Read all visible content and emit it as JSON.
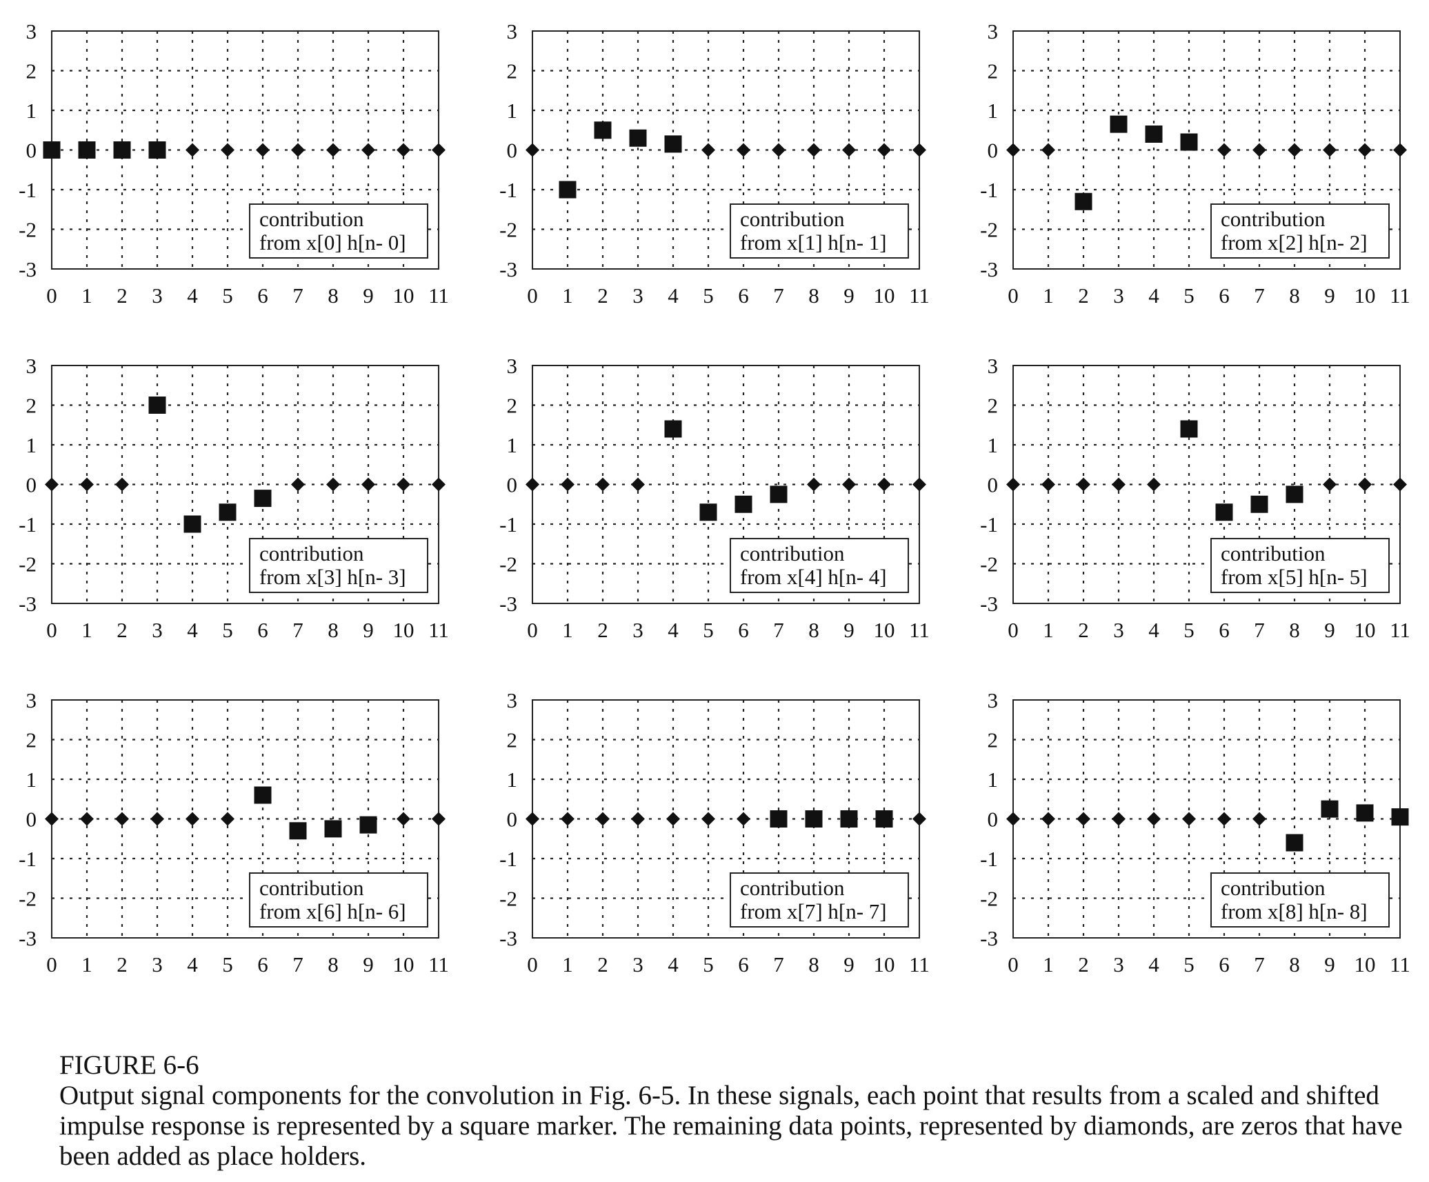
{
  "figure": {
    "label": "FIGURE 6-6",
    "caption": "Output signal components for the convolution in Fig. 6-5.  In these signals, each point that results from a scaled and shifted impulse response is represented by a square marker.  The remaining data points, represented by diamonds, are zeros that have been added as place holders."
  },
  "colors": {
    "marker": "#111111",
    "grid": "#222222",
    "frame": "#222222",
    "background": "#ffffff"
  },
  "chart_data": [
    {
      "type": "scatter",
      "legend": [
        "contribution",
        "from  x[0] h[n- 0]"
      ],
      "x": [
        0,
        1,
        2,
        3,
        4,
        5,
        6,
        7,
        8,
        9,
        10,
        11
      ],
      "values": [
        0,
        0,
        0,
        0,
        0,
        0,
        0,
        0,
        0,
        0,
        0,
        0
      ],
      "square_indices": [
        0,
        1,
        2,
        3
      ],
      "xlim": [
        0,
        11
      ],
      "ylim": [
        -3,
        3
      ],
      "xticks": [
        "0",
        "1",
        "2",
        "3",
        "4",
        "5",
        "6",
        "7",
        "8",
        "9",
        "10",
        "11"
      ],
      "yticks": [
        "3",
        "2",
        "1",
        "0",
        "-1",
        "-2",
        "-3"
      ],
      "grid": true,
      "legend_position": "bottom-right"
    },
    {
      "type": "scatter",
      "legend": [
        "contribution",
        "from  x[1] h[n- 1]"
      ],
      "x": [
        0,
        1,
        2,
        3,
        4,
        5,
        6,
        7,
        8,
        9,
        10,
        11
      ],
      "values": [
        0,
        -1.0,
        0.5,
        0.3,
        0.15,
        0,
        0,
        0,
        0,
        0,
        0,
        0
      ],
      "square_indices": [
        1,
        2,
        3,
        4
      ],
      "xlim": [
        0,
        11
      ],
      "ylim": [
        -3,
        3
      ],
      "xticks": [
        "0",
        "1",
        "2",
        "3",
        "4",
        "5",
        "6",
        "7",
        "8",
        "9",
        "10",
        "11"
      ],
      "yticks": [
        "3",
        "2",
        "1",
        "0",
        "-1",
        "-2",
        "-3"
      ],
      "grid": true,
      "legend_position": "bottom-right"
    },
    {
      "type": "scatter",
      "legend": [
        "contribution",
        "from  x[2] h[n- 2]"
      ],
      "x": [
        0,
        1,
        2,
        3,
        4,
        5,
        6,
        7,
        8,
        9,
        10,
        11
      ],
      "values": [
        0,
        0,
        -1.3,
        0.65,
        0.4,
        0.2,
        0,
        0,
        0,
        0,
        0,
        0
      ],
      "square_indices": [
        2,
        3,
        4,
        5
      ],
      "xlim": [
        0,
        11
      ],
      "ylim": [
        -3,
        3
      ],
      "xticks": [
        "0",
        "1",
        "2",
        "3",
        "4",
        "5",
        "6",
        "7",
        "8",
        "9",
        "10",
        "11"
      ],
      "yticks": [
        "3",
        "2",
        "1",
        "0",
        "-1",
        "-2",
        "-3"
      ],
      "grid": true,
      "legend_position": "bottom-right"
    },
    {
      "type": "scatter",
      "legend": [
        "contribution",
        "from  x[3] h[n- 3]"
      ],
      "x": [
        0,
        1,
        2,
        3,
        4,
        5,
        6,
        7,
        8,
        9,
        10,
        11
      ],
      "values": [
        0,
        0,
        0,
        2.0,
        -1.0,
        -0.7,
        -0.35,
        0,
        0,
        0,
        0,
        0
      ],
      "square_indices": [
        3,
        4,
        5,
        6
      ],
      "xlim": [
        0,
        11
      ],
      "ylim": [
        -3,
        3
      ],
      "xticks": [
        "0",
        "1",
        "2",
        "3",
        "4",
        "5",
        "6",
        "7",
        "8",
        "9",
        "10",
        "11"
      ],
      "yticks": [
        "3",
        "2",
        "1",
        "0",
        "-1",
        "-2",
        "-3"
      ],
      "grid": true,
      "legend_position": "bottom-right"
    },
    {
      "type": "scatter",
      "legend": [
        "contribution",
        "from  x[4] h[n- 4]"
      ],
      "x": [
        0,
        1,
        2,
        3,
        4,
        5,
        6,
        7,
        8,
        9,
        10,
        11
      ],
      "values": [
        0,
        0,
        0,
        0,
        1.4,
        -0.7,
        -0.5,
        -0.25,
        0,
        0,
        0,
        0
      ],
      "square_indices": [
        4,
        5,
        6,
        7
      ],
      "xlim": [
        0,
        11
      ],
      "ylim": [
        -3,
        3
      ],
      "xticks": [
        "0",
        "1",
        "2",
        "3",
        "4",
        "5",
        "6",
        "7",
        "8",
        "9",
        "10",
        "11"
      ],
      "yticks": [
        "3",
        "2",
        "1",
        "0",
        "-1",
        "-2",
        "-3"
      ],
      "grid": true,
      "legend_position": "bottom-right"
    },
    {
      "type": "scatter",
      "legend": [
        "contribution",
        "from  x[5] h[n- 5]"
      ],
      "x": [
        0,
        1,
        2,
        3,
        4,
        5,
        6,
        7,
        8,
        9,
        10,
        11
      ],
      "values": [
        0,
        0,
        0,
        0,
        0,
        1.4,
        -0.7,
        -0.5,
        -0.25,
        0,
        0,
        0
      ],
      "square_indices": [
        5,
        6,
        7,
        8
      ],
      "xlim": [
        0,
        11
      ],
      "ylim": [
        -3,
        3
      ],
      "xticks": [
        "0",
        "1",
        "2",
        "3",
        "4",
        "5",
        "6",
        "7",
        "8",
        "9",
        "10",
        "11"
      ],
      "yticks": [
        "3",
        "2",
        "1",
        "0",
        "-1",
        "-2",
        "-3"
      ],
      "grid": true,
      "legend_position": "bottom-right"
    },
    {
      "type": "scatter",
      "legend": [
        "contribution",
        "from  x[6] h[n- 6]"
      ],
      "x": [
        0,
        1,
        2,
        3,
        4,
        5,
        6,
        7,
        8,
        9,
        10,
        11
      ],
      "values": [
        0,
        0,
        0,
        0,
        0,
        0,
        0.6,
        -0.3,
        -0.25,
        -0.15,
        0,
        0
      ],
      "square_indices": [
        6,
        7,
        8,
        9
      ],
      "xlim": [
        0,
        11
      ],
      "ylim": [
        -3,
        3
      ],
      "xticks": [
        "0",
        "1",
        "2",
        "3",
        "4",
        "5",
        "6",
        "7",
        "8",
        "9",
        "10",
        "11"
      ],
      "yticks": [
        "3",
        "2",
        "1",
        "0",
        "-1",
        "-2",
        "-3"
      ],
      "grid": true,
      "legend_position": "bottom-right"
    },
    {
      "type": "scatter",
      "legend": [
        "contribution",
        "from  x[7] h[n- 7]"
      ],
      "x": [
        0,
        1,
        2,
        3,
        4,
        5,
        6,
        7,
        8,
        9,
        10,
        11
      ],
      "values": [
        0,
        0,
        0,
        0,
        0,
        0,
        0,
        0,
        0,
        0,
        0,
        0
      ],
      "square_indices": [
        7,
        8,
        9,
        10
      ],
      "xlim": [
        0,
        11
      ],
      "ylim": [
        -3,
        3
      ],
      "xticks": [
        "0",
        "1",
        "2",
        "3",
        "4",
        "5",
        "6",
        "7",
        "8",
        "9",
        "10",
        "11"
      ],
      "yticks": [
        "3",
        "2",
        "1",
        "0",
        "-1",
        "-2",
        "-3"
      ],
      "grid": true,
      "legend_position": "bottom-right"
    },
    {
      "type": "scatter",
      "legend": [
        "contribution",
        "from  x[8] h[n- 8]"
      ],
      "x": [
        0,
        1,
        2,
        3,
        4,
        5,
        6,
        7,
        8,
        9,
        10,
        11
      ],
      "values": [
        0,
        0,
        0,
        0,
        0,
        0,
        0,
        0,
        -0.6,
        0.25,
        0.15,
        0.05
      ],
      "square_indices": [
        8,
        9,
        10,
        11
      ],
      "xlim": [
        0,
        11
      ],
      "ylim": [
        -3,
        3
      ],
      "xticks": [
        "0",
        "1",
        "2",
        "3",
        "4",
        "5",
        "6",
        "7",
        "8",
        "9",
        "10",
        "11"
      ],
      "yticks": [
        "3",
        "2",
        "1",
        "0",
        "-1",
        "-2",
        "-3"
      ],
      "grid": true,
      "legend_position": "bottom-right"
    }
  ]
}
